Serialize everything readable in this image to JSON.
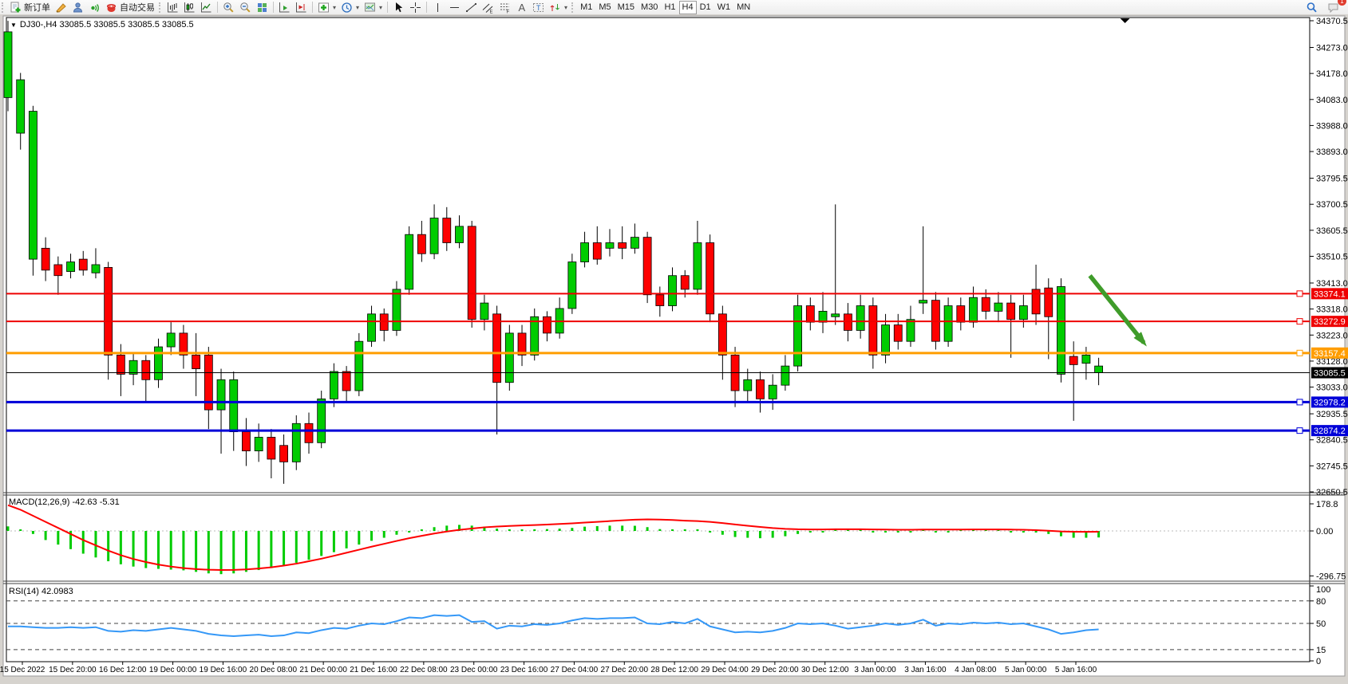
{
  "toolbar": {
    "new_order": "新订单",
    "auto_trading": "自动交易",
    "timeframes": [
      "M1",
      "M5",
      "M15",
      "M30",
      "H1",
      "H4",
      "D1",
      "W1",
      "MN"
    ],
    "active_timeframe": "H4",
    "badge": "1",
    "icon_names": [
      "new-order-icon",
      "crayon-icon",
      "profile-icon",
      "sound-icon",
      "auto-trading-icon",
      "bar-chart-icon",
      "candlestick-chart-icon",
      "line-chart-icon",
      "zoom-in-icon",
      "zoom-out-icon",
      "tile-windows-icon",
      "auto-scroll-icon",
      "chart-shift-icon",
      "indicators-icon",
      "periods-clock-icon",
      "template-icon",
      "cursor-icon",
      "crosshair-icon",
      "vertical-line-icon",
      "horizontal-line-icon",
      "trendline-icon",
      "channel-icon",
      "fibonacci-icon",
      "text-icon",
      "text-label-icon",
      "arrows-icon",
      "search-icon",
      "chat-bubble-icon"
    ]
  },
  "header": {
    "title": "DJ30-,H4  33085.5 33085.5 33085.5 33085.5",
    "symbol": "DJ30-",
    "period": "H4"
  },
  "chart_data": {
    "type": "candlestick",
    "symbol": "DJ30-",
    "timeframe": "H4",
    "price_axis": {
      "max": 34370.5,
      "min": 32650.5,
      "ticks": [
        "34370.5",
        "34273.0",
        "34178.0",
        "34083.0",
        "33988.0",
        "33893.0",
        "33795.5",
        "33700.5",
        "33605.5",
        "33510.5",
        "33413.0",
        "33318.0",
        "33223.0",
        "33128.0",
        "33033.0",
        "32935.5",
        "32840.5",
        "32745.5",
        "32650.5"
      ]
    },
    "colors": {
      "bull": "#00cc00",
      "bear": "#fe0000",
      "wick": "#000000",
      "macd_hist": "#00cc00",
      "macd_signal": "#fe0000",
      "rsi_line": "#3598f7",
      "arrow": "#3f9c2a"
    },
    "candles": [
      [
        34330,
        34090,
        34370,
        34040,
        "g"
      ],
      [
        34155,
        33960,
        34180,
        33900,
        "g"
      ],
      [
        34040,
        33500,
        34060,
        33440,
        "g"
      ],
      [
        33540,
        33460,
        33580,
        33420,
        "r"
      ],
      [
        33480,
        33440,
        33510,
        33370,
        "r"
      ],
      [
        33490,
        33455,
        33520,
        33430,
        "g"
      ],
      [
        33500,
        33460,
        33530,
        33440,
        "r"
      ],
      [
        33480,
        33450,
        33540,
        33430,
        "g"
      ],
      [
        33470,
        33150,
        33490,
        33060,
        "r"
      ],
      [
        33150,
        33080,
        33190,
        33000,
        "r"
      ],
      [
        33130,
        33080,
        33160,
        33040,
        "g"
      ],
      [
        33130,
        33060,
        33150,
        32980,
        "r"
      ],
      [
        33180,
        33060,
        33210,
        33030,
        "g"
      ],
      [
        33230,
        33180,
        33270,
        33150,
        "g"
      ],
      [
        33230,
        33150,
        33260,
        33100,
        "r"
      ],
      [
        33150,
        33100,
        33230,
        33000,
        "r"
      ],
      [
        33150,
        32950,
        33180,
        32880,
        "r"
      ],
      [
        33060,
        32950,
        33100,
        32790,
        "g"
      ],
      [
        33060,
        32870,
        33090,
        32800,
        "g"
      ],
      [
        32870,
        32800,
        32920,
        32745,
        "r"
      ],
      [
        32850,
        32800,
        32900,
        32760,
        "g"
      ],
      [
        32850,
        32770,
        32880,
        32700,
        "r"
      ],
      [
        32820,
        32760,
        32860,
        32680,
        "r"
      ],
      [
        32900,
        32760,
        32930,
        32730,
        "g"
      ],
      [
        32900,
        32830,
        32940,
        32790,
        "r"
      ],
      [
        32990,
        32830,
        33020,
        32810,
        "g"
      ],
      [
        33090,
        32990,
        33120,
        32960,
        "g"
      ],
      [
        33090,
        33020,
        33110,
        32980,
        "r"
      ],
      [
        33200,
        33020,
        33230,
        33000,
        "g"
      ],
      [
        33300,
        33200,
        33330,
        33180,
        "g"
      ],
      [
        33300,
        33240,
        33320,
        33200,
        "r"
      ],
      [
        33390,
        33240,
        33420,
        33220,
        "g"
      ],
      [
        33590,
        33390,
        33620,
        33370,
        "g"
      ],
      [
        33590,
        33520,
        33640,
        33490,
        "r"
      ],
      [
        33650,
        33520,
        33700,
        33500,
        "g"
      ],
      [
        33650,
        33560,
        33690,
        33530,
        "r"
      ],
      [
        33620,
        33560,
        33660,
        33540,
        "g"
      ],
      [
        33620,
        33280,
        33640,
        33250,
        "r"
      ],
      [
        33340,
        33280,
        33370,
        33240,
        "g"
      ],
      [
        33300,
        33050,
        33330,
        32860,
        "r"
      ],
      [
        33230,
        33050,
        33260,
        33020,
        "g"
      ],
      [
        33230,
        33150,
        33260,
        33110,
        "r"
      ],
      [
        33290,
        33150,
        33320,
        33130,
        "g"
      ],
      [
        33290,
        33230,
        33310,
        33200,
        "r"
      ],
      [
        33320,
        33230,
        33360,
        33210,
        "g"
      ],
      [
        33490,
        33320,
        33520,
        33300,
        "g"
      ],
      [
        33560,
        33490,
        33600,
        33470,
        "g"
      ],
      [
        33560,
        33500,
        33620,
        33480,
        "r"
      ],
      [
        33560,
        33540,
        33610,
        33510,
        "g"
      ],
      [
        33560,
        33540,
        33620,
        33500,
        "r"
      ],
      [
        33580,
        33540,
        33630,
        33520,
        "g"
      ],
      [
        33580,
        33370,
        33600,
        33340,
        "r"
      ],
      [
        33370,
        33330,
        33400,
        33290,
        "r"
      ],
      [
        33440,
        33330,
        33470,
        33310,
        "g"
      ],
      [
        33440,
        33390,
        33460,
        33360,
        "r"
      ],
      [
        33560,
        33390,
        33640,
        33370,
        "g"
      ],
      [
        33560,
        33300,
        33590,
        33270,
        "r"
      ],
      [
        33300,
        33150,
        33330,
        33060,
        "r"
      ],
      [
        33150,
        33020,
        33180,
        32960,
        "r"
      ],
      [
        33060,
        33020,
        33100,
        32980,
        "g"
      ],
      [
        33060,
        32990,
        33090,
        32940,
        "r"
      ],
      [
        33040,
        32990,
        33080,
        32950,
        "g"
      ],
      [
        33110,
        33040,
        33150,
        33020,
        "g"
      ],
      [
        33330,
        33110,
        33370,
        33090,
        "g"
      ],
      [
        33330,
        33270,
        33360,
        33240,
        "r"
      ],
      [
        33310,
        33270,
        33380,
        33230,
        "g"
      ],
      [
        33300,
        33290,
        33700,
        33260,
        "g"
      ],
      [
        33300,
        33240,
        33340,
        33200,
        "r"
      ],
      [
        33330,
        33240,
        33370,
        33210,
        "g"
      ],
      [
        33330,
        33150,
        33360,
        33100,
        "r"
      ],
      [
        33260,
        33150,
        33300,
        33120,
        "g"
      ],
      [
        33260,
        33200,
        33300,
        33170,
        "r"
      ],
      [
        33280,
        33200,
        33330,
        33180,
        "g"
      ],
      [
        33350,
        33340,
        33620,
        33300,
        "g"
      ],
      [
        33350,
        33200,
        33380,
        33170,
        "r"
      ],
      [
        33330,
        33200,
        33360,
        33180,
        "g"
      ],
      [
        33330,
        33270,
        33360,
        33240,
        "r"
      ],
      [
        33360,
        33270,
        33400,
        33250,
        "g"
      ],
      [
        33360,
        33310,
        33390,
        33280,
        "r"
      ],
      [
        33340,
        33310,
        33380,
        33270,
        "g"
      ],
      [
        33340,
        33280,
        33370,
        33140,
        "r"
      ],
      [
        33330,
        33280,
        33370,
        33250,
        "g"
      ],
      [
        33390,
        33300,
        33480,
        33260,
        "r"
      ],
      [
        33395,
        33290,
        33430,
        33135,
        "r"
      ],
      [
        33400,
        33080,
        33430,
        33050,
        "g"
      ],
      [
        33145,
        33115,
        33200,
        32910,
        "r"
      ],
      [
        33150,
        33120,
        33180,
        33060,
        "g"
      ],
      [
        33110,
        33085.5,
        33140,
        33040,
        "g"
      ]
    ],
    "hlines": [
      {
        "price": 33374.1,
        "label": "33374.1",
        "color": "#ee0000",
        "width": 2
      },
      {
        "price": 33272.9,
        "label": "33272.9",
        "color": "#ee0000",
        "width": 2
      },
      {
        "price": 33157.4,
        "label": "33157.4",
        "color": "#ff9d00",
        "width": 3
      },
      {
        "price": 32978.2,
        "label": "32978.2",
        "color": "#0000d8",
        "width": 3
      },
      {
        "price": 32874.2,
        "label": "32874.2",
        "color": "#0000d8",
        "width": 3
      }
    ],
    "current_price": {
      "value": 33085.5,
      "label": "33085.5",
      "color": "#000000"
    },
    "time_labels": [
      "15 Dec 2022",
      "15 Dec 20:00",
      "16 Dec 12:00",
      "19 Dec 00:00",
      "19 Dec 16:00",
      "20 Dec 08:00",
      "21 Dec 00:00",
      "21 Dec 16:00",
      "22 Dec 08:00",
      "23 Dec 00:00",
      "23 Dec 16:00",
      "27 Dec 04:00",
      "27 Dec 20:00",
      "28 Dec 12:00",
      "29 Dec 04:00",
      "29 Dec 20:00",
      "30 Dec 12:00",
      "3 Jan 00:00",
      "3 Jan 16:00",
      "4 Jan 08:00",
      "5 Jan 00:00",
      "5 Jan 16:00"
    ],
    "macd": {
      "label": "MACD(12,26,9) -42.63 -5.31",
      "axis_max": 178.8,
      "axis_labels": [
        "178.8",
        "0.00",
        "-296.75"
      ],
      "axis_values": [
        178.8,
        0,
        -296.75
      ],
      "histogram": [
        30,
        10,
        -20,
        -60,
        -90,
        -120,
        -150,
        -175,
        -200,
        -220,
        -235,
        -245,
        -250,
        -255,
        -260,
        -270,
        -280,
        -285,
        -280,
        -270,
        -258,
        -245,
        -230,
        -210,
        -190,
        -165,
        -140,
        -115,
        -90,
        -65,
        -45,
        -25,
        -5,
        10,
        25,
        35,
        40,
        35,
        28,
        15,
        10,
        8,
        10,
        12,
        15,
        20,
        28,
        32,
        35,
        35,
        34,
        25,
        12,
        8,
        5,
        10,
        -5,
        -25,
        -40,
        -45,
        -48,
        -45,
        -35,
        -20,
        -10,
        -5,
        5,
        2,
        5,
        -5,
        -8,
        -8,
        -5,
        5,
        -5,
        -2,
        0,
        3,
        2,
        2,
        -3,
        -2,
        -10,
        -20,
        -35,
        -45,
        -45,
        -43
      ],
      "signal": [
        170,
        140,
        100,
        60,
        20,
        -20,
        -60,
        -95,
        -130,
        -160,
        -185,
        -205,
        -222,
        -235,
        -245,
        -252,
        -256,
        -258,
        -257,
        -254,
        -248,
        -240,
        -229,
        -216,
        -200,
        -183,
        -164,
        -144,
        -124,
        -104,
        -85,
        -66,
        -48,
        -32,
        -17,
        -4,
        7,
        16,
        24,
        29,
        33,
        36,
        39,
        42,
        46,
        50,
        55,
        60,
        65,
        70,
        74,
        76,
        75,
        72,
        68,
        65,
        60,
        52,
        43,
        34,
        26,
        19,
        14,
        11,
        10,
        10,
        11,
        11,
        11,
        10,
        9,
        8,
        8,
        9,
        9,
        9,
        9,
        10,
        10,
        10,
        9,
        8,
        5,
        1,
        -3,
        -5,
        -6,
        -5
      ]
    },
    "rsi": {
      "label": "RSI(14) 42.0983",
      "axis_labels": [
        "100",
        "80",
        "50",
        "15",
        "0"
      ],
      "axis_values": [
        100,
        80,
        50,
        15,
        0
      ],
      "levels": [
        80,
        50,
        15
      ],
      "values": [
        46,
        46,
        45,
        44,
        44,
        45,
        44,
        45,
        40,
        39,
        41,
        40,
        42,
        44,
        42,
        40,
        36,
        34,
        33,
        34,
        35,
        33,
        34,
        38,
        37,
        41,
        44,
        43,
        47,
        50,
        49,
        53,
        58,
        57,
        61,
        60,
        61,
        52,
        53,
        43,
        47,
        46,
        49,
        48,
        50,
        54,
        57,
        56,
        57,
        57,
        58,
        50,
        49,
        52,
        50,
        56,
        46,
        42,
        38,
        39,
        38,
        40,
        44,
        50,
        49,
        50,
        47,
        43,
        45,
        47,
        50,
        48,
        50,
        55,
        47,
        50,
        49,
        51,
        50,
        51,
        49,
        50,
        46,
        42,
        36,
        38,
        41,
        42
      ]
    },
    "arrow": {
      "from_bar": 86.3,
      "from_price": 33440,
      "to_bar": 90.6,
      "to_price": 33195,
      "color": "#3f9c2a"
    },
    "shift_marker_bar": 89.1
  }
}
